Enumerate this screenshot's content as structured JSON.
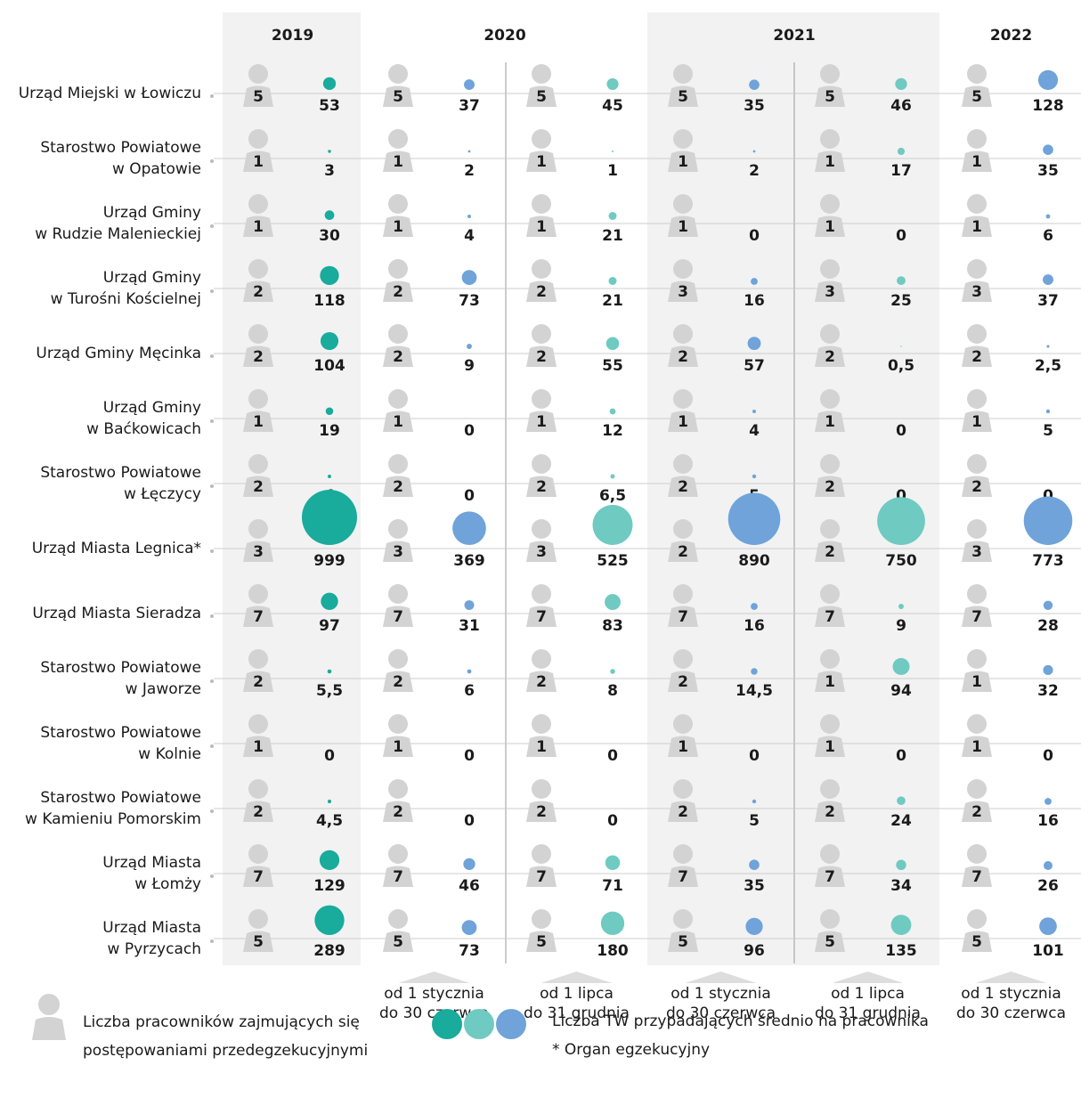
{
  "chart_data": {
    "type": "bubble-grid",
    "years": [
      {
        "label": "2019",
        "span": 1
      },
      {
        "label": "2020",
        "span": 2
      },
      {
        "label": "2021",
        "span": 2
      },
      {
        "label": "2022",
        "span": 1
      }
    ],
    "periods": [
      null,
      [
        "od 1 stycznia",
        "do 30 czerwca"
      ],
      [
        "od 1 lipca",
        "do 31 grudnia"
      ],
      [
        "od 1 stycznia",
        "do 30 czerwca"
      ],
      [
        "od 1 lipca",
        "do 31 grudnia"
      ],
      [
        "od 1 stycznia",
        "do 30 czerwca"
      ]
    ],
    "shaded_years": [
      "2019",
      "2021"
    ],
    "categories": [
      [
        "Urząd Miejski w Łowiczu"
      ],
      [
        "Starostwo Powiatowe",
        "w Opatowie"
      ],
      [
        "Urząd Gminy",
        "w Rudzie Malenieckiej"
      ],
      [
        "Urząd Gminy",
        "w Turośni Kościelnej"
      ],
      [
        "Urząd Gminy Męcinka"
      ],
      [
        "Urząd Gminy",
        "w Baćkowicach"
      ],
      [
        "Starostwo Powiatowe",
        "w Łęczycy"
      ],
      [
        "Urząd Miasta Legnica*"
      ],
      [
        "Urząd Miasta Sieradza"
      ],
      [
        "Starostwo Powiatowe",
        "w Jaworze"
      ],
      [
        "Starostwo Powiatowe",
        "w Kolnie"
      ],
      [
        "Starostwo Powiatowe",
        "w Kamieniu Pomorskim"
      ],
      [
        "Urząd Miasta",
        "w Łomży"
      ],
      [
        "Urząd Miasta",
        "w Pyrzycach"
      ]
    ],
    "series": [
      {
        "color": "#19ab9c",
        "staff": [
          5,
          1,
          1,
          2,
          2,
          1,
          2,
          3,
          7,
          2,
          1,
          2,
          7,
          5
        ],
        "values": [
          53,
          3,
          30,
          118,
          104,
          19,
          4,
          999,
          97,
          5.5,
          0,
          4.5,
          129,
          289
        ],
        "value_labels": [
          "53",
          "3",
          "30",
          "118",
          "104",
          "19",
          "4",
          "999",
          "97",
          "5,5",
          "0",
          "4,5",
          "129",
          "289"
        ]
      },
      {
        "color": "#6fa3d9",
        "staff": [
          5,
          1,
          1,
          2,
          2,
          1,
          2,
          3,
          7,
          2,
          1,
          2,
          7,
          5
        ],
        "values": [
          37,
          2,
          4,
          73,
          9,
          0,
          0,
          369,
          31,
          6,
          0,
          0,
          46,
          73
        ],
        "value_labels": [
          "37",
          "2",
          "4",
          "73",
          "9",
          "0",
          "0",
          "369",
          "31",
          "6",
          "0",
          "0",
          "46",
          "73"
        ]
      },
      {
        "color": "#6fcac1",
        "staff": [
          5,
          1,
          1,
          2,
          2,
          1,
          2,
          3,
          7,
          2,
          1,
          2,
          7,
          5
        ],
        "values": [
          45,
          1,
          21,
          21,
          55,
          12,
          6.5,
          525,
          83,
          8,
          0,
          0,
          71,
          180
        ],
        "value_labels": [
          "45",
          "1",
          "21",
          "21",
          "55",
          "12",
          "6,5",
          "525",
          "83",
          "8",
          "0",
          "0",
          "71",
          "180"
        ]
      },
      {
        "color": "#6fa3d9",
        "staff": [
          5,
          1,
          1,
          3,
          2,
          1,
          2,
          2,
          7,
          2,
          1,
          2,
          7,
          5
        ],
        "values": [
          35,
          2,
          0,
          16,
          57,
          4,
          5,
          890,
          16,
          14.5,
          0,
          5,
          35,
          96
        ],
        "value_labels": [
          "35",
          "2",
          "0",
          "16",
          "57",
          "4",
          "5",
          "890",
          "16",
          "14,5",
          "0",
          "5",
          "35",
          "96"
        ]
      },
      {
        "color": "#6fcac1",
        "staff": [
          5,
          1,
          1,
          3,
          2,
          1,
          2,
          2,
          7,
          1,
          1,
          2,
          7,
          5
        ],
        "values": [
          46,
          17,
          0,
          25,
          0.5,
          0,
          0,
          750,
          9,
          94,
          0,
          24,
          34,
          135
        ],
        "value_labels": [
          "46",
          "17",
          "0",
          "25",
          "0,5",
          "0",
          "0",
          "750",
          "9",
          "94",
          "0",
          "24",
          "34",
          "135"
        ]
      },
      {
        "color": "#6fa3d9",
        "staff": [
          5,
          1,
          1,
          3,
          2,
          1,
          2,
          3,
          7,
          1,
          1,
          2,
          7,
          5
        ],
        "values": [
          128,
          35,
          6,
          37,
          2.5,
          5,
          0,
          773,
          28,
          32,
          0,
          16,
          26,
          101
        ],
        "value_labels": [
          "128",
          "35",
          "6",
          "37",
          "2,5",
          "5",
          "0",
          "773",
          "28",
          "32",
          "0",
          "16",
          "26",
          "101"
        ]
      }
    ],
    "legend": {
      "staff_label": [
        "Liczba pracowników zajmujących się",
        "postępowaniami przedegzekucyjnymi"
      ],
      "value_label": "Liczba TW przypadających średnio na pracownika",
      "note": "* Organ egzekucyjny",
      "colors": [
        "#19ab9c",
        "#6fcac1",
        "#6fa3d9"
      ]
    }
  }
}
